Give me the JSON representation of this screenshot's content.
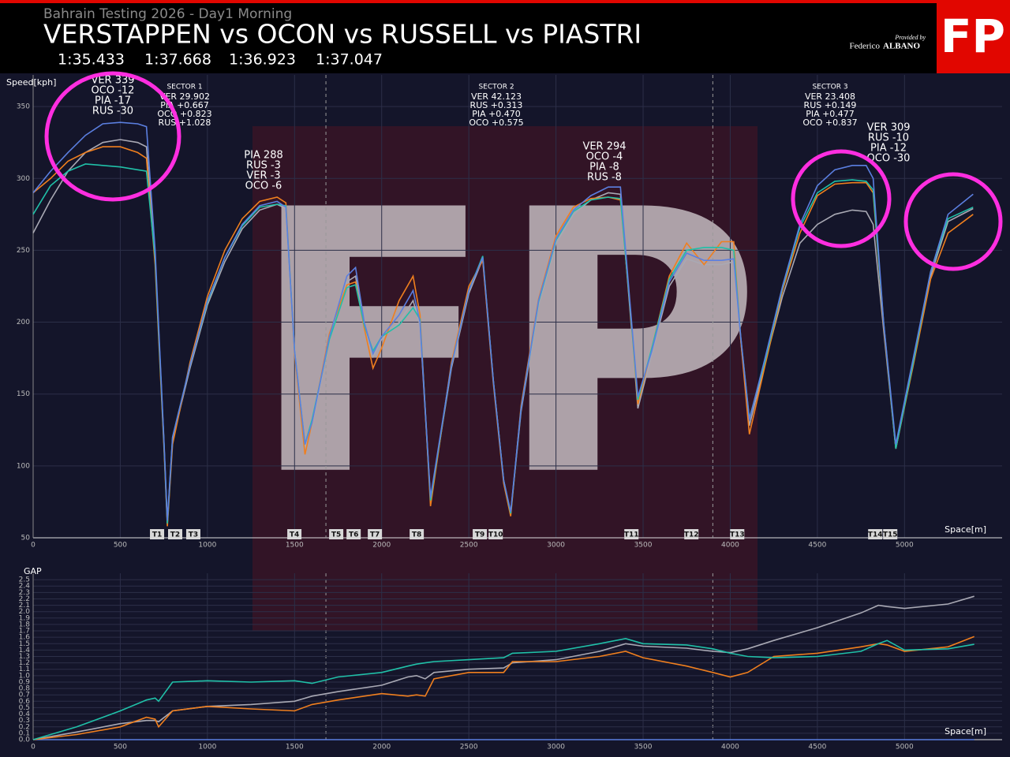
{
  "header": {
    "subtitle": "Bahrain Testing 2026 - Day1 Morning",
    "title": "VERSTAPPEN vs OCON vs RUSSELL vs PIASTRI",
    "lap_times": [
      "1:35.433",
      "1:37.668",
      "1:36.923",
      "1:37.047"
    ],
    "logo": "FP",
    "provided_by": "Provided by",
    "author_first": "Federico",
    "author_last": "ALBANO"
  },
  "chart_data": [
    {
      "type": "line",
      "y_label": "Speed[kph]",
      "x_label": "Space[m]",
      "xlim": [
        0,
        5560
      ],
      "ylim": [
        50,
        372
      ],
      "xticks": [
        0,
        500,
        1000,
        1500,
        2000,
        2500,
        3000,
        3500,
        4000,
        4500,
        5000
      ],
      "yticks": [
        50,
        100,
        150,
        200,
        250,
        300,
        350
      ],
      "grid": true,
      "x": [
        0,
        100,
        200,
        300,
        400,
        500,
        600,
        650,
        700,
        750,
        770,
        800,
        900,
        1000,
        1100,
        1200,
        1300,
        1400,
        1450,
        1500,
        1560,
        1600,
        1700,
        1800,
        1850,
        1900,
        1950,
        2000,
        2100,
        2180,
        2220,
        2280,
        2400,
        2500,
        2580,
        2640,
        2700,
        2740,
        2800,
        2900,
        3000,
        3100,
        3200,
        3300,
        3370,
        3420,
        3470,
        3550,
        3650,
        3750,
        3850,
        3950,
        4020,
        4060,
        4110,
        4200,
        4300,
        4400,
        4500,
        4600,
        4700,
        4780,
        4820,
        4880,
        4950,
        5050,
        5150,
        5250,
        5394
      ],
      "series": [
        {
          "color": "#a9a9b4",
          "values": [
            262,
            285,
            305,
            318,
            325,
            327,
            325,
            322,
            245,
            118,
            60,
            118,
            168,
            212,
            242,
            265,
            278,
            282,
            279,
            182,
            112,
            128,
            188,
            228,
            232,
            198,
            176,
            188,
            200,
            215,
            198,
            76,
            168,
            220,
            244,
            160,
            90,
            67,
            138,
            212,
            255,
            275,
            285,
            290,
            289,
            215,
            140,
            178,
            225,
            244,
            240,
            240,
            242,
            188,
            128,
            172,
            218,
            255,
            268,
            275,
            278,
            277,
            268,
            195,
            112,
            172,
            232,
            270,
            279
          ]
        },
        {
          "color": "#f07f1e",
          "values": [
            290,
            300,
            312,
            318,
            322,
            322,
            318,
            314,
            240,
            115,
            58,
            115,
            172,
            218,
            250,
            272,
            284,
            287,
            283,
            178,
            108,
            130,
            192,
            226,
            228,
            196,
            168,
            182,
            215,
            232,
            205,
            72,
            172,
            225,
            243,
            158,
            88,
            65,
            142,
            216,
            260,
            280,
            286,
            287,
            285,
            218,
            143,
            182,
            232,
            255,
            240,
            256,
            256,
            188,
            122,
            170,
            222,
            262,
            288,
            296,
            297,
            297,
            290,
            198,
            112,
            170,
            230,
            262,
            275
          ]
        },
        {
          "color": "#20c0a8",
          "values": [
            275,
            295,
            305,
            310,
            309,
            308,
            306,
            305,
            245,
            118,
            60,
            120,
            170,
            214,
            245,
            267,
            280,
            282,
            281,
            180,
            115,
            132,
            188,
            224,
            226,
            198,
            180,
            190,
            198,
            210,
            202,
            76,
            170,
            222,
            246,
            160,
            90,
            67,
            140,
            214,
            257,
            277,
            285,
            287,
            286,
            218,
            146,
            182,
            230,
            250,
            252,
            252,
            250,
            190,
            133,
            173,
            224,
            266,
            290,
            298,
            299,
            298,
            292,
            200,
            112,
            172,
            235,
            272,
            280
          ]
        },
        {
          "color": "#5b7fe0",
          "values": [
            290,
            305,
            318,
            330,
            338,
            339,
            338,
            336,
            250,
            120,
            62,
            120,
            170,
            215,
            245,
            268,
            281,
            284,
            280,
            180,
            115,
            130,
            190,
            232,
            238,
            200,
            178,
            190,
            205,
            222,
            200,
            78,
            170,
            222,
            245,
            160,
            90,
            68,
            140,
            215,
            258,
            278,
            288,
            294,
            294,
            220,
            148,
            180,
            228,
            248,
            243,
            243,
            244,
            190,
            132,
            175,
            225,
            268,
            295,
            306,
            309,
            309,
            300,
            200,
            115,
            175,
            235,
            275,
            289
          ]
        }
      ],
      "sector_lines": [
        1680,
        3900
      ],
      "corners": [
        "T1",
        "T2",
        "T3",
        "T4",
        "T5",
        "T6",
        "T7",
        "T8",
        "T9",
        "T10",
        "T11",
        "T12",
        "T13",
        "T14",
        "T15"
      ],
      "corner_x": [
        711,
        815,
        919,
        1499,
        1739,
        1839,
        1961,
        2201,
        2563,
        2654,
        3433,
        3777,
        4040,
        4832,
        4918
      ],
      "sectors": [
        {
          "title": "SECTOR 1",
          "lines": [
            "VER 29.902",
            "PIA +0.667",
            "OCO +0.823",
            "RUS +1.028"
          ]
        },
        {
          "title": "SECTOR 2",
          "lines": [
            "VER 42.123",
            "RUS +0.313",
            "PIA +0.470",
            "OCO +0.575"
          ]
        },
        {
          "title": "SECTOR 3",
          "lines": [
            "VER 23.408",
            "RUS +0.149",
            "PIA +0.477",
            "OCO +0.837"
          ]
        }
      ],
      "annotations": [
        [
          "VER 339",
          "OCO -12",
          "PIA -17",
          "RUS -30"
        ],
        [
          "PIA 288",
          "RUS -3",
          "VER -3",
          "OCO -6"
        ],
        [
          "VER 294",
          "OCO -4",
          "PIA -8",
          "RUS -8"
        ],
        [
          "VER 309",
          "RUS -10",
          "PIA -12",
          "OCO -30"
        ]
      ]
    },
    {
      "type": "line",
      "y_label": "GAP",
      "x_label": "Space[m]",
      "xlim": [
        0,
        5560
      ],
      "ylim": [
        0,
        2.6
      ],
      "xticks": [
        0,
        500,
        1000,
        1500,
        2000,
        2500,
        3000,
        3500,
        4000,
        4500,
        5000
      ],
      "yticks": [
        {
          "value": 0,
          "label": "0.0"
        },
        0.1,
        0.2,
        0.3,
        0.4,
        0.5,
        0.6,
        0.7,
        0.8,
        0.9,
        {
          "value": 1,
          "label": "1.0"
        },
        1.1,
        1.2,
        1.3,
        1.4,
        1.5,
        1.6,
        1.7,
        1.8,
        1.9,
        {
          "value": 2,
          "label": "2.0"
        },
        2.1,
        2.2,
        2.3,
        2.4,
        2.5
      ],
      "grid": true,
      "x": [
        0,
        250,
        500,
        650,
        700,
        720,
        800,
        1000,
        1250,
        1500,
        1600,
        1750,
        2000,
        2150,
        2200,
        2250,
        2300,
        2500,
        2700,
        2750,
        3000,
        3250,
        3400,
        3500,
        3750,
        3900,
        4000,
        4100,
        4250,
        4500,
        4750,
        4850,
        4900,
        5000,
        5250,
        5400
      ],
      "series": [
        {
          "color": "#5b7fe0",
          "values": [
            0,
            0,
            0,
            0,
            0,
            0,
            0,
            0,
            0,
            0,
            0,
            0,
            0,
            0,
            0,
            0,
            0,
            0,
            0,
            0,
            0,
            0,
            0,
            0,
            0,
            0,
            0,
            0,
            0,
            0,
            0,
            0,
            0,
            0,
            0,
            0
          ]
        },
        {
          "color": "#a9a9b4",
          "values": [
            0,
            0.12,
            0.25,
            0.3,
            0.3,
            0.28,
            0.45,
            0.52,
            0.55,
            0.6,
            0.68,
            0.75,
            0.85,
            0.98,
            1.0,
            0.95,
            1.05,
            1.1,
            1.12,
            1.2,
            1.25,
            1.38,
            1.5,
            1.46,
            1.43,
            1.38,
            1.36,
            1.42,
            1.55,
            1.75,
            1.98,
            2.1,
            2.08,
            2.05,
            2.12,
            2.24
          ]
        },
        {
          "color": "#f07f1e",
          "values": [
            0,
            0.08,
            0.2,
            0.35,
            0.32,
            0.2,
            0.45,
            0.52,
            0.48,
            0.45,
            0.55,
            0.62,
            0.72,
            0.68,
            0.7,
            0.68,
            0.95,
            1.05,
            1.05,
            1.22,
            1.22,
            1.3,
            1.38,
            1.28,
            1.15,
            1.05,
            0.98,
            1.05,
            1.3,
            1.35,
            1.45,
            1.5,
            1.48,
            1.38,
            1.45,
            1.61
          ]
        },
        {
          "color": "#20c0a8",
          "values": [
            0,
            0.2,
            0.45,
            0.62,
            0.65,
            0.6,
            0.9,
            0.92,
            0.9,
            0.92,
            0.88,
            0.98,
            1.05,
            1.15,
            1.18,
            1.2,
            1.22,
            1.25,
            1.28,
            1.35,
            1.38,
            1.5,
            1.58,
            1.5,
            1.48,
            1.42,
            1.35,
            1.3,
            1.28,
            1.3,
            1.38,
            1.5,
            1.55,
            1.4,
            1.42,
            1.49
          ]
        }
      ]
    }
  ]
}
